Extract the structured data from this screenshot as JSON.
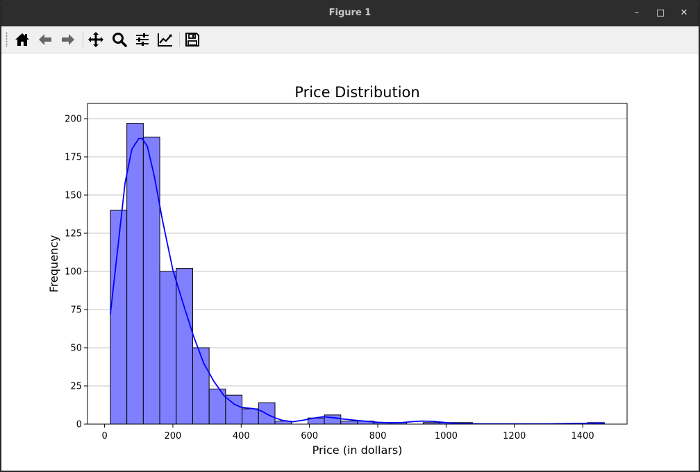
{
  "window": {
    "title": "Figure 1",
    "minimize_glyph": "–",
    "maximize_glyph": "□",
    "close_glyph": "✕"
  },
  "toolbar": {
    "buttons": [
      {
        "name": "home-icon"
      },
      {
        "name": "back-icon"
      },
      {
        "name": "forward-icon"
      },
      {
        "name": "pan-icon"
      },
      {
        "name": "zoom-icon"
      },
      {
        "name": "configure-subplots-icon"
      },
      {
        "name": "edit-axis-icon"
      },
      {
        "name": "save-icon"
      }
    ]
  },
  "chart_data": {
    "type": "bar",
    "title": "Price Distribution",
    "xlabel": "Price (in dollars)",
    "ylabel": "Frequency",
    "xlim": [
      -50,
      1530
    ],
    "ylim": [
      0,
      210
    ],
    "grid": "y",
    "bar_color": "#8080ff",
    "bar_edge_color": "#000000",
    "kde_color": "#0000ff",
    "xticks": [
      0,
      200,
      400,
      600,
      800,
      1000,
      1200,
      1400
    ],
    "yticks": [
      0,
      25,
      50,
      75,
      100,
      125,
      150,
      175,
      200
    ],
    "bins": {
      "start": 17,
      "width": 48.2,
      "counts": [
        140,
        197,
        188,
        100,
        102,
        50,
        23,
        19,
        10,
        14,
        2,
        0,
        4,
        6,
        2,
        2,
        1,
        1,
        0,
        1,
        1,
        1,
        0,
        0,
        0,
        0,
        0,
        0,
        0,
        1
      ]
    },
    "kde": {
      "x": [
        17,
        40,
        60,
        80,
        100,
        110,
        125,
        145,
        170,
        200,
        230,
        260,
        290,
        320,
        350,
        380,
        400,
        420,
        440,
        460,
        480,
        500,
        520,
        550,
        580,
        610,
        640,
        670,
        700,
        730,
        760,
        800,
        840,
        870,
        900,
        930,
        960,
        990,
        1020,
        1060,
        1100,
        1150,
        1200,
        1250,
        1300,
        1350,
        1400,
        1440,
        1465
      ],
      "y": [
        72,
        118,
        158,
        180,
        187,
        187,
        182,
        163,
        133,
        101,
        79,
        58,
        40,
        28,
        18.5,
        13,
        11,
        10.5,
        10,
        8.5,
        6,
        4,
        2.5,
        1.5,
        2.5,
        3.8,
        4.8,
        4.2,
        3.3,
        2.6,
        2,
        1.2,
        0.8,
        1,
        1.6,
        2,
        1.8,
        1.2,
        0.6,
        0.3,
        0.2,
        0.2,
        0.2,
        0.2,
        0.2,
        0.3,
        0.5,
        0.7,
        0.6
      ]
    }
  }
}
